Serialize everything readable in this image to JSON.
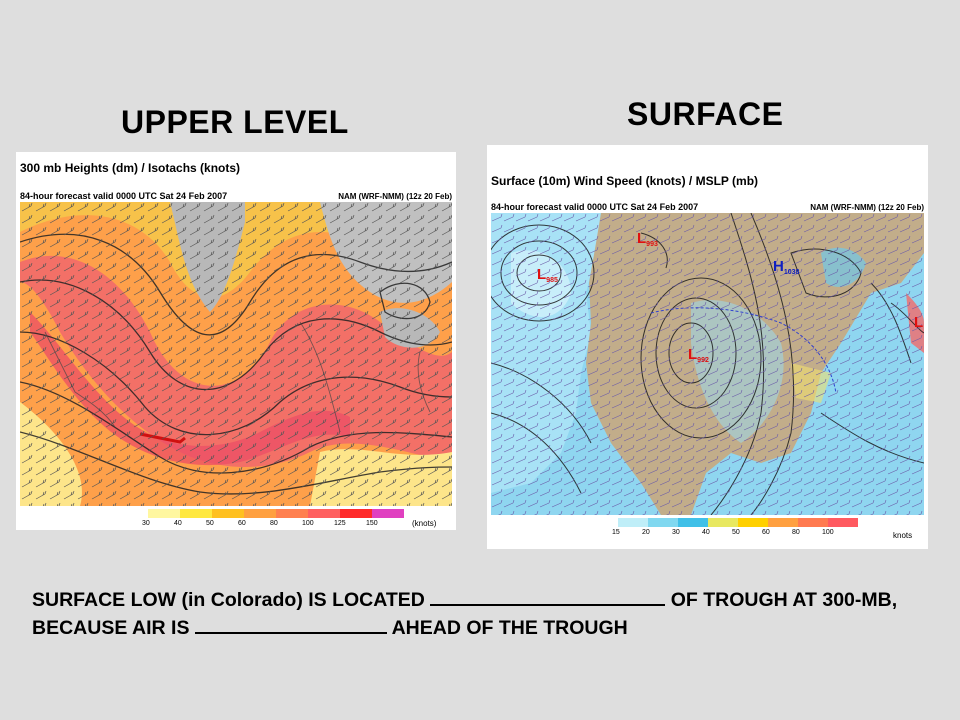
{
  "headings": {
    "upper": "UPPER LEVEL",
    "surface": "SURFACE"
  },
  "upper_map": {
    "title": "300 mb Heights (dm) / Isotachs (knots)",
    "subtitle": "84-hour forecast valid 0000 UTC Sat 24 Feb 2007",
    "model": "NAM (WRF-NMM) (12z 20 Feb)",
    "scale_values": [
      "30",
      "40",
      "50",
      "60",
      "80",
      "100",
      "125",
      "150"
    ],
    "scale_colors": [
      "#fff7a0",
      "#ffe840",
      "#ffc020",
      "#ffa040",
      "#ff8050",
      "#ff6060",
      "#ff2a2a",
      "#e040c0"
    ],
    "scale_unit": "(knots)"
  },
  "surface_map": {
    "title": "Surface (10m) Wind Speed (knots) / MSLP (mb)",
    "subtitle": "84-hour forecast valid 0000 UTC Sat 24 Feb 2007",
    "model": "NAM (WRF-NMM) (12z 20 Feb)",
    "scale_values": [
      "15",
      "20",
      "30",
      "40",
      "50",
      "60",
      "80",
      "100"
    ],
    "scale_colors": [
      "#bfeef8",
      "#80d8f0",
      "#40c0e8",
      "#e8e860",
      "#ffd000",
      "#ffa040",
      "#ff7a50",
      "#ff5a60"
    ],
    "scale_unit": "knots",
    "pressure_labels": [
      {
        "letter": "L",
        "value": "993"
      },
      {
        "letter": "L",
        "value": "985"
      },
      {
        "letter": "H",
        "value": "1038"
      },
      {
        "letter": "L",
        "value": "992"
      },
      {
        "letter": "L",
        "value": ""
      }
    ]
  },
  "question": {
    "part1": "SURFACE LOW (in Colorado) IS LOCATED ",
    "part2": " OF TROUGH AT 300-MB, BECAUSE AIR IS ",
    "part3": " AHEAD OF THE TROUGH"
  }
}
